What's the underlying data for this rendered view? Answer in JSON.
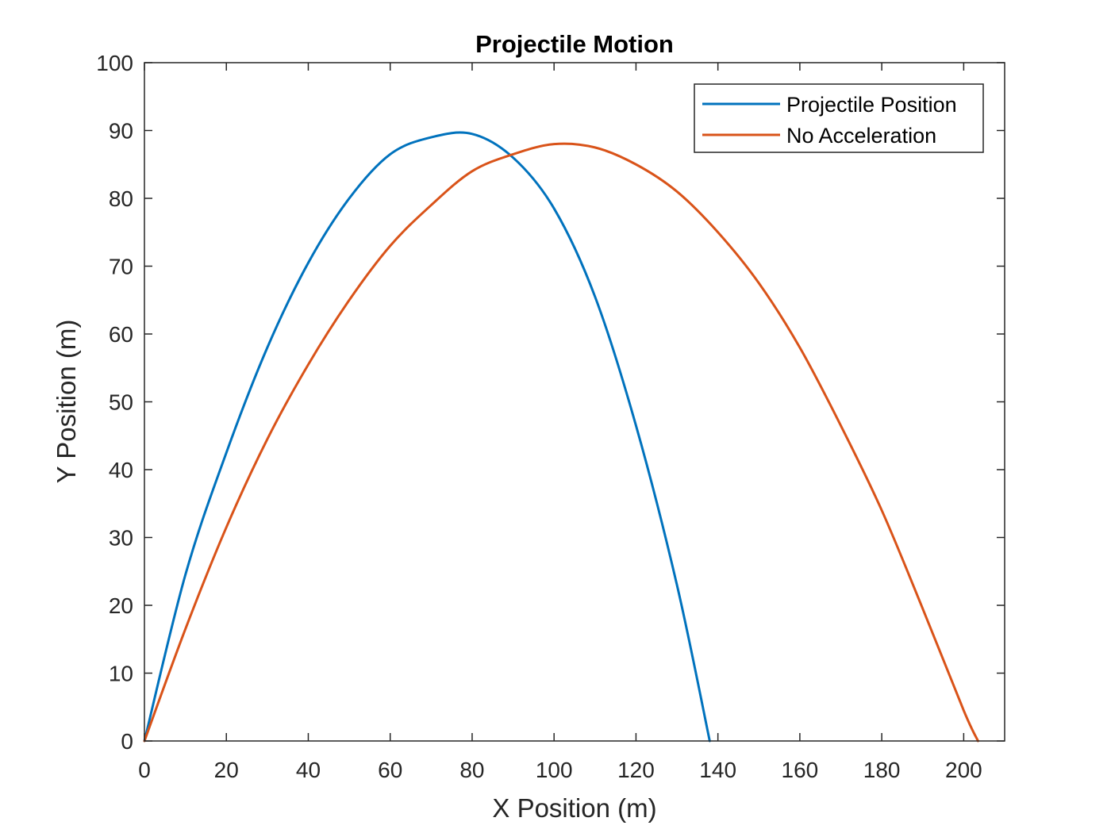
{
  "chart_data": {
    "type": "line",
    "title": "Projectile Motion",
    "xlabel": "X Position (m)",
    "ylabel": "Y Position (m)",
    "xlim": [
      0,
      210
    ],
    "ylim": [
      0,
      100
    ],
    "xticks": [
      0,
      20,
      40,
      60,
      80,
      100,
      120,
      140,
      160,
      180,
      200
    ],
    "yticks": [
      0,
      10,
      20,
      30,
      40,
      50,
      60,
      70,
      80,
      90,
      100
    ],
    "grid": false,
    "legend_position": "top-right",
    "series": [
      {
        "name": "Projectile Position",
        "color": "#0072BD",
        "x": [
          0,
          10,
          20,
          30,
          40,
          50,
          60,
          70,
          80,
          90,
          100,
          110,
          120,
          130,
          138
        ],
        "y": [
          0,
          24.5,
          42.5,
          58.0,
          70.5,
          80.0,
          86.5,
          89.0,
          89.5,
          86.0,
          78.5,
          65.5,
          46.5,
          23.0,
          0
        ]
      },
      {
        "name": "No Acceleration",
        "color": "#D95319",
        "x": [
          0,
          10,
          20,
          30,
          40,
          50,
          60,
          70,
          80,
          90,
          100,
          110,
          120,
          130,
          140,
          150,
          160,
          170,
          180,
          190,
          200,
          203.5
        ],
        "y": [
          0,
          16.5,
          31.5,
          44.5,
          55.5,
          65.0,
          73.0,
          79.0,
          84.0,
          86.5,
          88.0,
          87.5,
          85.0,
          81.0,
          75.0,
          67.5,
          58.0,
          46.5,
          34.0,
          19.5,
          4.5,
          0
        ]
      }
    ]
  }
}
